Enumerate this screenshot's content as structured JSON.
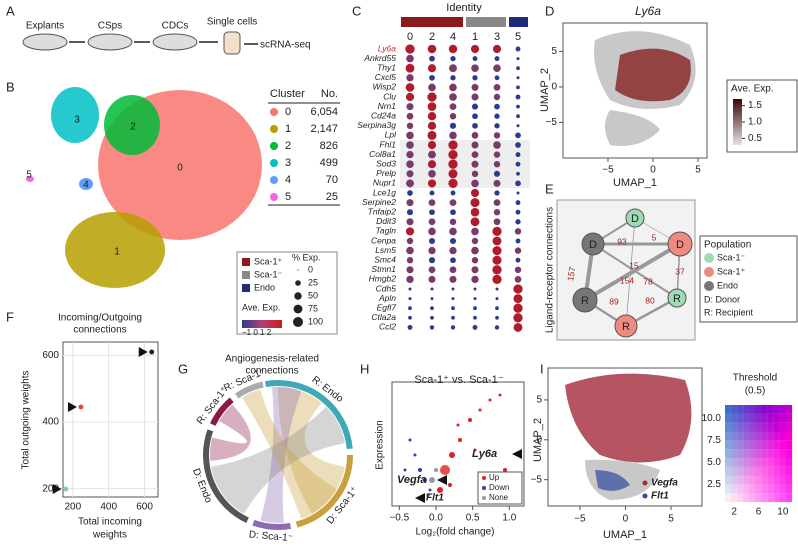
{
  "panels": {
    "A": "A",
    "B": "B",
    "C": "C",
    "D": "D",
    "E": "E",
    "F": "F",
    "G": "G",
    "H": "H",
    "I": "I"
  },
  "workflow": {
    "steps": [
      "Explants",
      "CSps",
      "CDCs",
      "Single cells"
    ],
    "result": "scRNA-seq"
  },
  "umap_b": {
    "cluster_labels": [
      "0",
      "1",
      "2",
      "3",
      "4",
      "5"
    ]
  },
  "cluster_table": {
    "header": [
      "Cluster",
      "No."
    ],
    "rows": [
      [
        "0",
        "6,054"
      ],
      [
        "1",
        "2,147"
      ],
      [
        "2",
        "826"
      ],
      [
        "3",
        "499"
      ],
      [
        "4",
        "70"
      ],
      [
        "5",
        "25"
      ]
    ]
  },
  "dot_legend": {
    "identities": [
      "Sca-1⁺",
      "Sca-1⁻",
      "Endo"
    ],
    "size_title": "% Exp.",
    "sizes": [
      0,
      25,
      50,
      75,
      100
    ],
    "color_title": "Ave. Exp.",
    "color_ticks": "−1 0 1 2"
  },
  "dotplot": {
    "title": "Identity",
    "columns": [
      "0",
      "2",
      "4",
      "1",
      "3",
      "5"
    ],
    "genes": [
      "Ly6a",
      "Ankrd55",
      "Thy1",
      "Cxcl5",
      "Wisp2",
      "Clu",
      "Nrn1",
      "Cd24a",
      "Serpina3g",
      "Lpl",
      "Fhl1",
      "Col8a1",
      "Sod3",
      "Prelp",
      "Nupr1",
      "Lce1g",
      "Serpine2",
      "Tnfaip2",
      "Ddit3",
      "Tagln",
      "Cenpa",
      "Lsm5",
      "Smc4",
      "Stmn1",
      "Hmgb2",
      "Cdh5",
      "Apln",
      "Egfl7",
      "Ctla2a",
      "Ccl2"
    ],
    "pct": [
      [
        95,
        80,
        75,
        70,
        70,
        20
      ],
      [
        60,
        30,
        25,
        20,
        20,
        5
      ],
      [
        85,
        70,
        65,
        60,
        60,
        10
      ],
      [
        55,
        30,
        25,
        25,
        20,
        5
      ],
      [
        80,
        60,
        60,
        50,
        45,
        10
      ],
      [
        70,
        95,
        60,
        50,
        40,
        20
      ],
      [
        50,
        80,
        45,
        35,
        30,
        10
      ],
      [
        45,
        75,
        40,
        30,
        25,
        10
      ],
      [
        40,
        70,
        35,
        30,
        25,
        5
      ],
      [
        60,
        90,
        60,
        45,
        40,
        30
      ],
      [
        60,
        70,
        95,
        50,
        60,
        30
      ],
      [
        55,
        65,
        95,
        45,
        40,
        20
      ],
      [
        60,
        70,
        95,
        50,
        40,
        20
      ],
      [
        50,
        60,
        90,
        40,
        35,
        10
      ],
      [
        65,
        70,
        95,
        60,
        50,
        30
      ],
      [
        30,
        20,
        20,
        70,
        25,
        5
      ],
      [
        50,
        45,
        45,
        90,
        45,
        20
      ],
      [
        35,
        30,
        30,
        80,
        40,
        20
      ],
      [
        50,
        45,
        40,
        85,
        45,
        25
      ],
      [
        70,
        60,
        60,
        60,
        95,
        40
      ],
      [
        40,
        35,
        35,
        40,
        85,
        20
      ],
      [
        60,
        55,
        55,
        60,
        90,
        40
      ],
      [
        40,
        35,
        30,
        40,
        90,
        20
      ],
      [
        50,
        45,
        45,
        50,
        95,
        40
      ],
      [
        55,
        50,
        50,
        55,
        95,
        45
      ],
      [
        5,
        5,
        5,
        5,
        5,
        95
      ],
      [
        5,
        5,
        5,
        5,
        5,
        90
      ],
      [
        10,
        10,
        10,
        10,
        10,
        95
      ],
      [
        10,
        10,
        10,
        10,
        10,
        95
      ],
      [
        20,
        15,
        15,
        20,
        15,
        85
      ]
    ]
  },
  "umap_d": {
    "title": "Ly6a",
    "ylabel": "UMAP_2",
    "xlabel": "UMAP_1",
    "xlim": [
      -10,
      6
    ],
    "ylim": [
      -10,
      9
    ],
    "xticks": [
      {
        "value": -5,
        "label": "−5"
      },
      0,
      5
    ],
    "yticks": [
      5,
      0,
      {
        "value": -5,
        "label": "−5"
      }
    ],
    "legend_title": "Ave. Exp.",
    "legend_ticks": [
      {
        "value": 1.5,
        "label": "1.5"
      },
      {
        "value": 1.0,
        "label": "1.0"
      },
      {
        "value": 0.5,
        "label": "0.5"
      }
    ]
  },
  "network": {
    "ylabel": "Ligand-receptor connections",
    "nodes": [
      "D",
      "D",
      "D",
      "R",
      "R",
      "R"
    ],
    "weights": [
      "93",
      "5",
      "157",
      "15",
      "37",
      "154",
      "78",
      "89",
      "80"
    ],
    "legend_title": "Population",
    "legend": [
      "Sca-1⁻",
      "Sca-1⁺",
      "Endo",
      "D: Donor",
      "R: Recipient"
    ]
  },
  "scatter_f": {
    "title": [
      "Incoming/Outgoing",
      "connections"
    ],
    "ylabel": "Total outgoing weights",
    "xlabel": [
      "Total incoming",
      "weights"
    ],
    "xlim": [
      145,
      675
    ],
    "ylim": [
      175,
      640
    ],
    "xticks": [
      200,
      400,
      600
    ],
    "yticks": [
      200,
      400,
      600
    ],
    "x": [
      640,
      245,
      160
    ],
    "y": [
      610,
      445,
      199
    ],
    "colors": [
      "#222222",
      "#e8473a",
      "#7ccf9c"
    ]
  },
  "chord": {
    "title": [
      "Angiogenesis-related",
      "connections"
    ],
    "labels": [
      "R: Endo",
      "D: Sca-1⁺",
      "D: Sca-1⁻",
      "D: Endo",
      "R: Sca-1⁺",
      "R: Sca-1⁻"
    ]
  },
  "volcano": {
    "title": "Sca-1⁺ vs. Sca-1⁻",
    "ylabel": "Expression",
    "xlabel": "Log₂(fold change)",
    "xlim": [
      -0.6,
      1.2
    ],
    "xticks": [
      {
        "value": -0.5,
        "label": "−0.5"
      },
      {
        "value": 0,
        "label": "0.0"
      },
      {
        "value": 0.5,
        "label": "0.5"
      },
      {
        "value": 1.0,
        "label": "1.0"
      }
    ],
    "legend": [
      "Up",
      "Down",
      "None"
    ],
    "genes": [
      "Ly6a",
      "Vegfa",
      "Flt1"
    ]
  },
  "umap_i": {
    "ylabel": "UMAP_2",
    "xlabel": "UMAP_1",
    "xlim": [
      -8.5,
      8.4
    ],
    "ylim": [
      -8.3,
      9
    ],
    "xticks": [
      {
        "value": -5,
        "label": "−5"
      },
      0,
      5
    ],
    "yticks": [
      5,
      0,
      {
        "value": -5,
        "label": "−5"
      }
    ],
    "legend": [
      "Vegfa",
      "Flt1"
    ],
    "threshold_title": [
      "Threshold",
      "(0.5)"
    ],
    "threshold_yticks": [
      {
        "value": 10,
        "label": "10.0"
      },
      {
        "value": 7.5,
        "label": "7.5"
      },
      {
        "value": 5,
        "label": "5.0"
      },
      {
        "value": 2.5,
        "label": "2.5"
      }
    ],
    "threshold_xticks": [
      2,
      6,
      10
    ]
  }
}
